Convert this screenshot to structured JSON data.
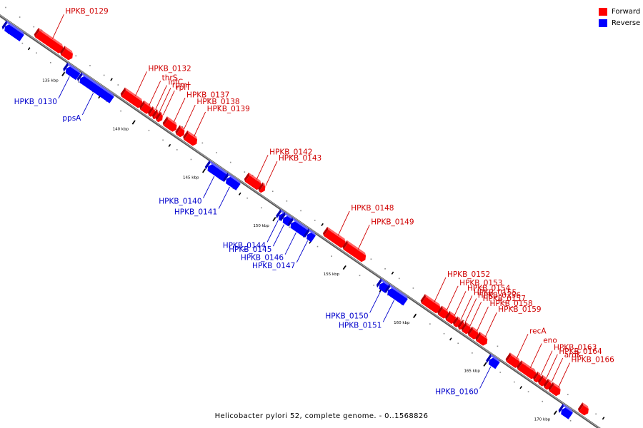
{
  "title": "Helicobacter pylori 52, complete genome. - 0..1568826",
  "legend": [
    {
      "label": "Forward",
      "color": "#ff0000"
    },
    {
      "label": "Reverse",
      "color": "#0000ff"
    }
  ],
  "colors": {
    "forward": "#ff0000",
    "reverse": "#0000ff",
    "label_forward": "#d00000",
    "label_reverse": "#0000cc"
  },
  "ruler": [
    {
      "label": "135 kbp",
      "kbp": 135
    },
    {
      "label": "140 kbp",
      "kbp": 140
    },
    {
      "label": "145 kbp",
      "kbp": 145
    },
    {
      "label": "150 kbp",
      "kbp": 150
    },
    {
      "label": "155 kbp",
      "kbp": 155
    },
    {
      "label": "160 kbp",
      "kbp": 160
    },
    {
      "label": "165 kbp",
      "kbp": 165
    },
    {
      "label": "170 kbp",
      "kbp": 170
    }
  ],
  "genes": [
    {
      "name": "",
      "strand": "reverse",
      "start_kbp": 130.6,
      "end_kbp": 131.8
    },
    {
      "name": "HPKB_0129",
      "strand": "forward",
      "start_kbp": 132.4,
      "end_kbp": 134.2
    },
    {
      "name": "",
      "strand": "forward",
      "start_kbp": 134.25,
      "end_kbp": 134.9
    },
    {
      "name": "HPKB_0130",
      "strand": "reverse",
      "start_kbp": 134.95,
      "end_kbp": 135.8
    },
    {
      "name": "ppsA",
      "strand": "reverse",
      "start_kbp": 135.95,
      "end_kbp": 138.2
    },
    {
      "name": "HPKB_0132",
      "strand": "forward",
      "start_kbp": 138.55,
      "end_kbp": 139.85
    },
    {
      "name": "thrS",
      "strand": "forward",
      "start_kbp": 139.9,
      "end_kbp": 140.45
    },
    {
      "name": "infC",
      "strand": "forward",
      "start_kbp": 140.5,
      "end_kbp": 140.75
    },
    {
      "name": "rpmI",
      "strand": "forward",
      "start_kbp": 140.8,
      "end_kbp": 141.0
    },
    {
      "name": "rplT",
      "strand": "forward",
      "start_kbp": 141.05,
      "end_kbp": 141.3
    },
    {
      "name": "HPKB_0137",
      "strand": "forward",
      "start_kbp": 141.55,
      "end_kbp": 142.3
    },
    {
      "name": "HPKB_0138",
      "strand": "forward",
      "start_kbp": 142.45,
      "end_kbp": 142.85
    },
    {
      "name": "HPKB_0139",
      "strand": "forward",
      "start_kbp": 143.0,
      "end_kbp": 143.75
    },
    {
      "name": "HPKB_0140",
      "strand": "reverse",
      "start_kbp": 145.05,
      "end_kbp": 146.3
    },
    {
      "name": "HPKB_0141",
      "strand": "reverse",
      "start_kbp": 146.35,
      "end_kbp": 147.2
    },
    {
      "name": "HPKB_0142",
      "strand": "forward",
      "start_kbp": 147.35,
      "end_kbp": 148.3
    },
    {
      "name": "HPKB_0143",
      "strand": "forward",
      "start_kbp": 148.35,
      "end_kbp": 148.6
    },
    {
      "name": "HPKB_0144",
      "strand": "reverse",
      "start_kbp": 150.1,
      "end_kbp": 150.35
    },
    {
      "name": "HPKB_0145",
      "strand": "reverse",
      "start_kbp": 150.4,
      "end_kbp": 150.9
    },
    {
      "name": "HPKB_0146",
      "strand": "reverse",
      "start_kbp": 150.95,
      "end_kbp": 152.05
    },
    {
      "name": "HPKB_0147",
      "strand": "reverse",
      "start_kbp": 152.1,
      "end_kbp": 152.55
    },
    {
      "name": "HPKB_0148",
      "strand": "forward",
      "start_kbp": 152.95,
      "end_kbp": 154.3
    },
    {
      "name": "HPKB_0149",
      "strand": "forward",
      "start_kbp": 154.35,
      "end_kbp": 155.75
    },
    {
      "name": "HPKB_0150",
      "strand": "reverse",
      "start_kbp": 157.25,
      "end_kbp": 157.8
    },
    {
      "name": "HPKB_0151",
      "strand": "reverse",
      "start_kbp": 157.85,
      "end_kbp": 159.1
    },
    {
      "name": "HPKB_0152",
      "strand": "forward",
      "start_kbp": 159.9,
      "end_kbp": 161.05
    },
    {
      "name": "HPKB_0153",
      "strand": "forward",
      "start_kbp": 161.1,
      "end_kbp": 161.6
    },
    {
      "name": "HPKB_0154",
      "strand": "forward",
      "start_kbp": 161.65,
      "end_kbp": 162.15
    },
    {
      "name": "HPKB_0155",
      "strand": "forward",
      "start_kbp": 162.2,
      "end_kbp": 162.5
    },
    {
      "name": "HPKB_0156",
      "strand": "forward",
      "start_kbp": 162.55,
      "end_kbp": 162.75
    },
    {
      "name": "HPKB_0157",
      "strand": "forward",
      "start_kbp": 162.8,
      "end_kbp": 163.2
    },
    {
      "name": "HPKB_0158",
      "strand": "forward",
      "start_kbp": 163.25,
      "end_kbp": 163.75
    },
    {
      "name": "HPKB_0159",
      "strand": "forward",
      "start_kbp": 163.8,
      "end_kbp": 164.4
    },
    {
      "name": "HPKB_0160",
      "strand": "reverse",
      "start_kbp": 165.05,
      "end_kbp": 165.65
    },
    {
      "name": "recA",
      "strand": "forward",
      "start_kbp": 165.95,
      "end_kbp": 166.7
    },
    {
      "name": "eno",
      "strand": "forward",
      "start_kbp": 166.75,
      "end_kbp": 167.85
    },
    {
      "name": "HPKB_0163",
      "strand": "forward",
      "start_kbp": 167.9,
      "end_kbp": 168.2
    },
    {
      "name": "HPKB_0164",
      "strand": "forward",
      "start_kbp": 168.25,
      "end_kbp": 168.6
    },
    {
      "name": "aroK",
      "strand": "forward",
      "start_kbp": 168.65,
      "end_kbp": 168.95
    },
    {
      "name": "HPKB_0166",
      "strand": "forward",
      "start_kbp": 169.0,
      "end_kbp": 169.6
    },
    {
      "name": "",
      "strand": "reverse",
      "start_kbp": 170.2,
      "end_kbp": 170.85
    },
    {
      "name": "",
      "strand": "forward",
      "start_kbp": 171.1,
      "end_kbp": 171.6
    }
  ]
}
